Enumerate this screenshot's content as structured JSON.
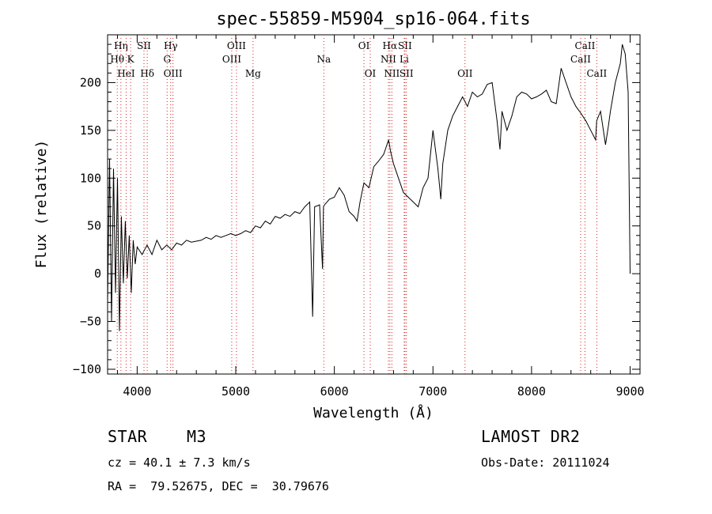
{
  "chart_data": {
    "type": "line",
    "title": "spec-55859-M5904_sp16-064.fits",
    "xlabel": "Wavelength (Å)",
    "ylabel": "Flux (relative)",
    "xlim": [
      3700,
      9100
    ],
    "ylim": [
      -105,
      250
    ],
    "xticks": [
      4000,
      5000,
      6000,
      7000,
      8000,
      9000
    ],
    "yticks": [
      -100,
      -50,
      0,
      50,
      100,
      150,
      200
    ],
    "grid": false,
    "line_color": "#000000",
    "marker_color": "#d62020",
    "series": [
      {
        "x": [
          3700,
          3720,
          3740,
          3760,
          3780,
          3800,
          3820,
          3840,
          3860,
          3880,
          3900,
          3920,
          3940,
          3960,
          3980,
          4000,
          4050,
          4100,
          4150,
          4200,
          4250,
          4300,
          4350,
          4400,
          4450,
          4500,
          4550,
          4600,
          4650,
          4700,
          4750,
          4800,
          4850,
          4900,
          4950,
          5000,
          5050,
          5100,
          5150,
          5200,
          5250,
          5300,
          5350,
          5400,
          5450,
          5500,
          5550,
          5600,
          5650,
          5700,
          5750,
          5780,
          5800,
          5850,
          5880,
          5890,
          5900,
          5950,
          6000,
          6050,
          6100,
          6150,
          6200,
          6230,
          6260,
          6300,
          6350,
          6400,
          6450,
          6500,
          6550,
          6570,
          6600,
          6650,
          6700,
          6750,
          6800,
          6850,
          6900,
          6950,
          7000,
          7050,
          7080,
          7100,
          7150,
          7200,
          7250,
          7300,
          7350,
          7400,
          7450,
          7500,
          7550,
          7600,
          7650,
          7680,
          7700,
          7750,
          7800,
          7850,
          7900,
          7950,
          8000,
          8050,
          8100,
          8150,
          8200,
          8250,
          8300,
          8350,
          8400,
          8450,
          8500,
          8550,
          8600,
          8650,
          8660,
          8700,
          8750,
          8780,
          8800,
          8850,
          8900,
          8920,
          8950,
          8980,
          9000
        ],
        "y": [
          -30,
          120,
          -50,
          110,
          -20,
          100,
          -60,
          60,
          -10,
          55,
          -5,
          40,
          -20,
          35,
          10,
          28,
          20,
          30,
          20,
          35,
          25,
          30,
          25,
          32,
          30,
          35,
          33,
          34,
          35,
          38,
          36,
          40,
          38,
          40,
          42,
          40,
          42,
          45,
          43,
          50,
          48,
          55,
          52,
          60,
          58,
          62,
          60,
          65,
          63,
          70,
          75,
          -45,
          70,
          72,
          5,
          70,
          72,
          78,
          80,
          90,
          82,
          65,
          60,
          55,
          75,
          95,
          90,
          112,
          118,
          125,
          140,
          128,
          115,
          100,
          85,
          80,
          75,
          70,
          90,
          100,
          150,
          110,
          78,
          115,
          150,
          165,
          175,
          185,
          175,
          190,
          185,
          188,
          198,
          200,
          160,
          130,
          170,
          150,
          165,
          185,
          190,
          188,
          183,
          185,
          188,
          192,
          180,
          178,
          215,
          200,
          185,
          175,
          168,
          160,
          150,
          140,
          160,
          170,
          135,
          155,
          170,
          200,
          220,
          240,
          230,
          190,
          0
        ]
      }
    ],
    "lines": [
      {
        "name": "Hη",
        "x": 3835,
        "row": 1
      },
      {
        "name": "Hθ",
        "x": 3798,
        "row": 2
      },
      {
        "name": "K",
        "x": 3934,
        "row": 2
      },
      {
        "name": "HeI",
        "x": 3888,
        "row": 3
      },
      {
        "name": "SII",
        "x": 4069,
        "row": 1
      },
      {
        "name": "Hδ",
        "x": 4102,
        "row": 3
      },
      {
        "name": "Hγ",
        "x": 4340,
        "row": 1
      },
      {
        "name": "G",
        "x": 4304,
        "row": 2
      },
      {
        "name": "OIII",
        "x": 4363,
        "row": 3
      },
      {
        "name": "OIII",
        "x": 5007,
        "row": 1
      },
      {
        "name": "OIII",
        "x": 4959,
        "row": 2
      },
      {
        "name": "Mg",
        "x": 5175,
        "row": 3
      },
      {
        "name": "Na",
        "x": 5893,
        "row": 2
      },
      {
        "name": "OI",
        "x": 6300,
        "row": 1
      },
      {
        "name": "OI",
        "x": 6364,
        "row": 3
      },
      {
        "name": "Hα",
        "x": 6563,
        "row": 1
      },
      {
        "name": "SII",
        "x": 6716,
        "row": 1
      },
      {
        "name": "NII",
        "x": 6548,
        "row": 2
      },
      {
        "name": "Li",
        "x": 6708,
        "row": 2
      },
      {
        "name": "NII",
        "x": 6583,
        "row": 3
      },
      {
        "name": "SII",
        "x": 6731,
        "row": 3
      },
      {
        "name": "OII",
        "x": 7325,
        "row": 3
      },
      {
        "name": "CaII",
        "x": 8542,
        "row": 1
      },
      {
        "name": "CaII",
        "x": 8498,
        "row": 2
      },
      {
        "name": "CaII",
        "x": 8662,
        "row": 3
      }
    ]
  },
  "info": {
    "object_class": "STAR",
    "subclass": "M3",
    "survey": "LAMOST DR2",
    "cz": "cz = 40.1 ± 7.3 km/s",
    "obs_date": "Obs-Date: 20111024",
    "coords": "RA =  79.52675, DEC =  30.79676"
  }
}
